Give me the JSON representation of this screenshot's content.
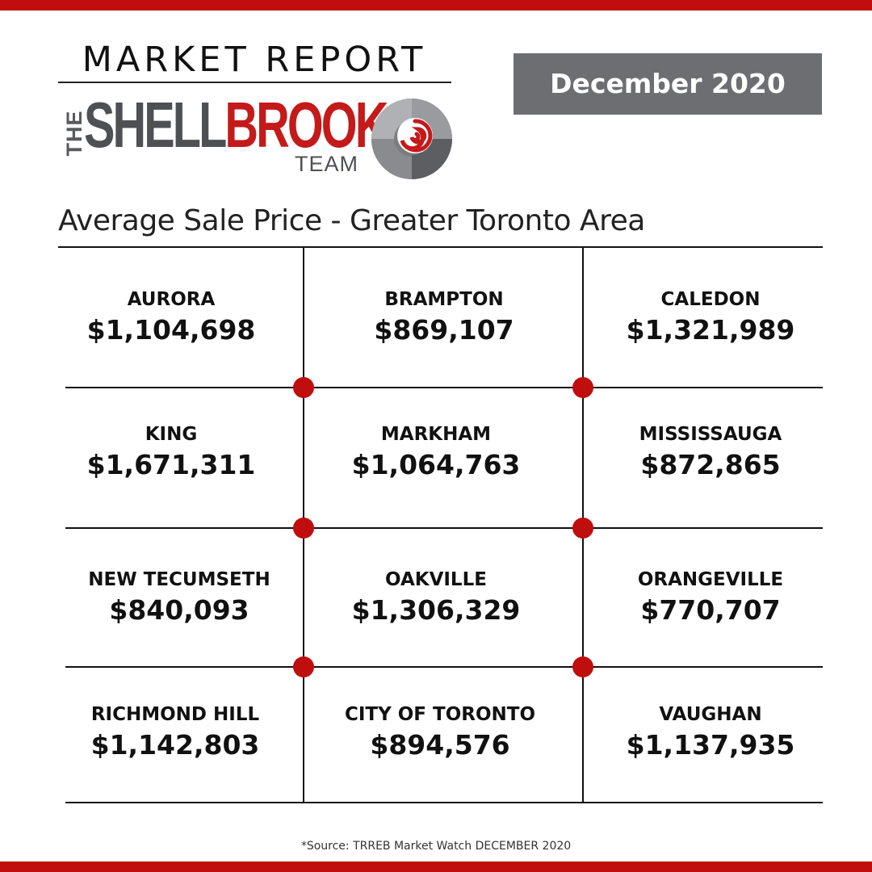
{
  "header": {
    "title": "MARKET REPORT",
    "date": "December 2020"
  },
  "logo": {
    "prefix": "THE",
    "word_dark": "SHELL",
    "word_red": "BROOK",
    "suffix": "TEAM",
    "icon": "nautilus-shell-icon"
  },
  "subtitle": "Average Sale Price - Greater Toronto Area",
  "cells": [
    {
      "city": "AURORA",
      "price": "$1,104,698"
    },
    {
      "city": "BRAMPTON",
      "price": "$869,107"
    },
    {
      "city": "CALEDON",
      "price": "$1,321,989"
    },
    {
      "city": "KING",
      "price": "$1,671,311"
    },
    {
      "city": "MARKHAM",
      "price": "$1,064,763"
    },
    {
      "city": "MISSISSAUGA",
      "price": "$872,865"
    },
    {
      "city": "NEW TECUMSETH",
      "price": "$840,093"
    },
    {
      "city": "OAKVILLE",
      "price": "$1,306,329"
    },
    {
      "city": "ORANGEVILLE",
      "price": "$770,707"
    },
    {
      "city": "RICHMOND HILL",
      "price": "$1,142,803"
    },
    {
      "city": "CITY OF TORONTO",
      "price": "$894,576"
    },
    {
      "city": "VAUGHAN",
      "price": "$1,137,935"
    }
  ],
  "source": "*Source: TRREB Market Watch DECEMBER 2020",
  "colors": {
    "accent_red": "#c00d0d",
    "dark_gray": "#4f5054",
    "date_box_gray": "#6d6e71"
  }
}
